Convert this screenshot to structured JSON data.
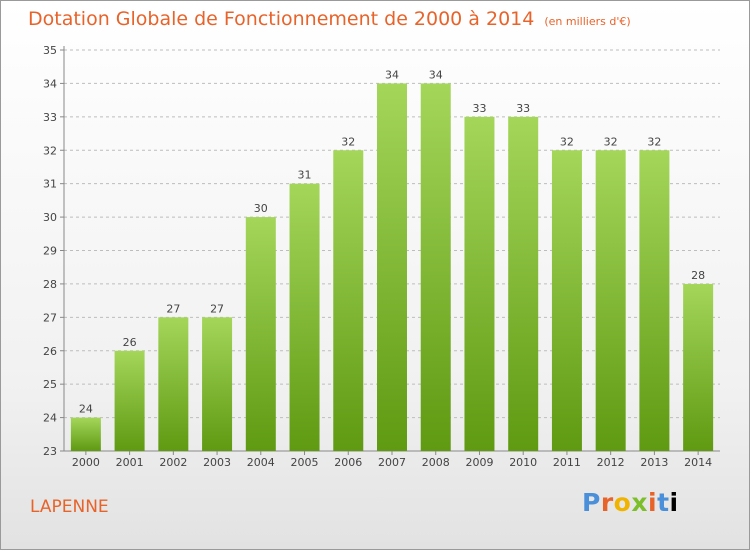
{
  "header": {
    "title": "Dotation Globale de Fonctionnement de 2000 à 2014",
    "subtitle": "(en milliers d'€)"
  },
  "footer": {
    "commune": "LAPENNE",
    "logo_letters": [
      "P",
      "r",
      "o",
      "x",
      "i",
      "t",
      "i"
    ]
  },
  "chart_data": {
    "type": "bar",
    "categories": [
      "2000",
      "2001",
      "2002",
      "2003",
      "2004",
      "2005",
      "2006",
      "2007",
      "2008",
      "2009",
      "2010",
      "2011",
      "2012",
      "2013",
      "2014"
    ],
    "values": [
      24,
      26,
      27,
      27,
      30,
      31,
      32,
      34,
      34,
      33,
      33,
      32,
      32,
      32,
      28
    ],
    "title": "Dotation Globale de Fonctionnement de 2000 à 2014",
    "subtitle": "(en milliers d'€)",
    "xlabel": "",
    "ylabel": "",
    "ylim": [
      23,
      35
    ],
    "yticks": [
      23,
      24,
      25,
      26,
      27,
      28,
      29,
      30,
      31,
      32,
      33,
      34,
      35
    ],
    "grid": "horizontal",
    "colors": {
      "bar_top": "#a4d65a",
      "bar_bottom": "#5f9a12",
      "grid": "#bdbdbd",
      "title": "#e8632a"
    }
  }
}
